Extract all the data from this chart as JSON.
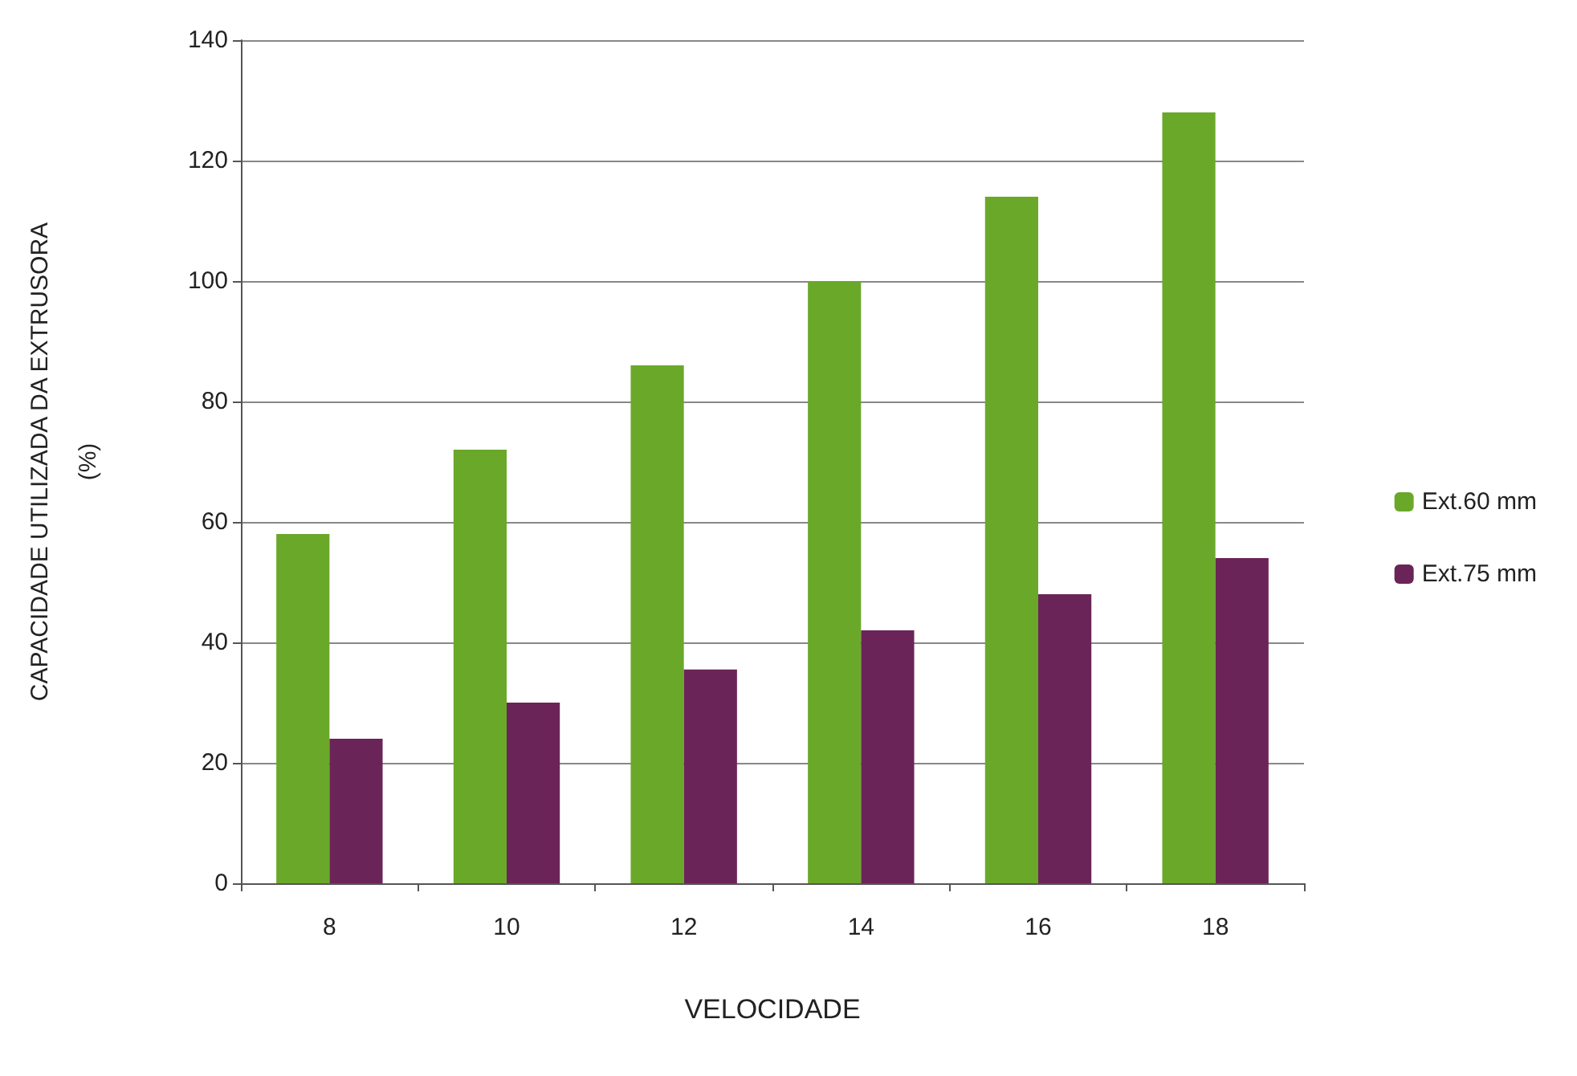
{
  "chart_data": {
    "type": "bar",
    "xlabel": "VELOCIDADE",
    "ylabel": "CAPACIDADE UTILIZADA DA EXTRUSORA\n(%)",
    "categories": [
      "8",
      "10",
      "12",
      "14",
      "16",
      "18"
    ],
    "series": [
      {
        "name": "Ext.60 mm",
        "color": "#6aa82a",
        "values": [
          58,
          72,
          86,
          100,
          114,
          128
        ]
      },
      {
        "name": "Ext.75 mm",
        "color": "#6b2458",
        "values": [
          24,
          30,
          35.5,
          42,
          48,
          54
        ]
      }
    ],
    "ylim": [
      0,
      140
    ],
    "yticks": [
      0,
      20,
      40,
      60,
      80,
      100,
      120,
      140
    ],
    "grid": "y",
    "legend": "right"
  }
}
